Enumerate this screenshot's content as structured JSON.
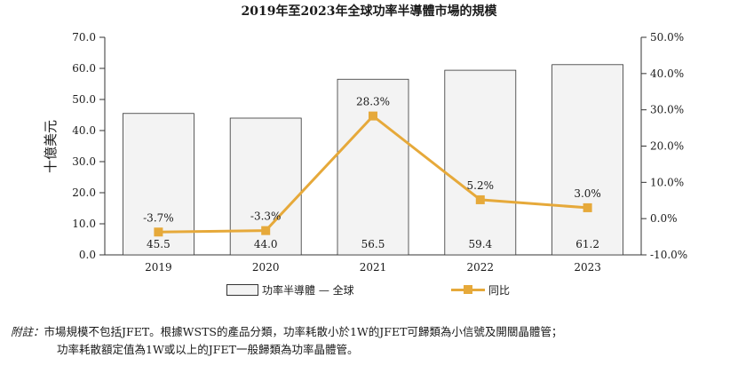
{
  "chart_data": {
    "type": "bar",
    "title": "2019年至2023年全球功率半導體市場的規模",
    "ylabel": "十億美元",
    "ylim": [
      0,
      70
    ],
    "y_ticks": [
      "70.0",
      "60.0",
      "50.0",
      "40.0",
      "30.0",
      "20.0",
      "10.0",
      "0.0"
    ],
    "y2lim": [
      -10,
      50
    ],
    "y2_ticks": [
      "50.0%",
      "40.0%",
      "30.0%",
      "20.0%",
      "10.0%",
      "0.0%",
      "-10.0%"
    ],
    "categories": [
      "2019",
      "2020",
      "2021",
      "2022",
      "2023"
    ],
    "series": [
      {
        "name": "功率半導體 — 全球",
        "type": "bar",
        "values": [
          45.5,
          44.0,
          56.5,
          59.4,
          61.2
        ],
        "labels": [
          "45.5",
          "44.0",
          "56.5",
          "59.4",
          "61.2"
        ]
      },
      {
        "name": "同比",
        "type": "line",
        "axis": "right",
        "values": [
          -3.7,
          -3.3,
          28.3,
          5.2,
          3.0
        ],
        "labels": [
          "-3.7%",
          "-3.3%",
          "28.3%",
          "5.2%",
          "3.0%"
        ]
      }
    ],
    "colors": {
      "bar_fill": "#f3f3f3",
      "bar_stroke": "#333333",
      "line": "#e6a93a"
    },
    "legend_position": "bottom"
  },
  "note": {
    "label": "附註：",
    "line1": "市場規模不包括JFET。根據WSTS的產品分類，功率耗散小於1W的JFET可歸類為小信號及開關晶體管；",
    "line2": "功率耗散額定值為1W或以上的JFET一般歸類為功率晶體管。"
  }
}
